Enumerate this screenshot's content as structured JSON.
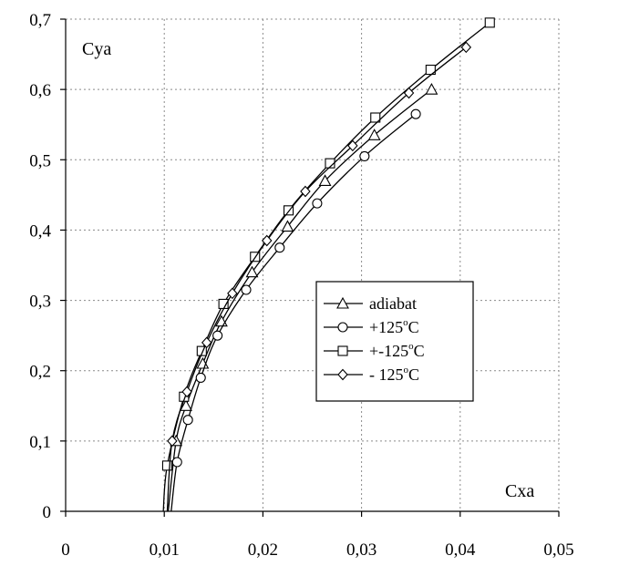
{
  "chart_data": {
    "type": "line",
    "xlabel": "Cxa",
    "ylabel": "Cya",
    "xlim": [
      0,
      0.05
    ],
    "ylim": [
      0,
      0.7
    ],
    "x_ticks": [
      "0",
      "0,01",
      "0,02",
      "0,03",
      "0,04",
      "0,05"
    ],
    "y_ticks": [
      "0",
      "0,1",
      "0,2",
      "0,3",
      "0,4",
      "0,5",
      "0,6",
      "0,7"
    ],
    "grid": "dotted",
    "legend_position": "center-right",
    "series": [
      {
        "name": "adiabat",
        "marker": "triangle",
        "points": [
          [
            0.0112,
            0.1
          ],
          [
            0.0122,
            0.15
          ],
          [
            0.0139,
            0.21
          ],
          [
            0.0158,
            0.27
          ],
          [
            0.0189,
            0.34
          ],
          [
            0.0225,
            0.405
          ],
          [
            0.0263,
            0.47
          ],
          [
            0.0313,
            0.535
          ],
          [
            0.0371,
            0.6
          ]
        ],
        "curve_start": [
          0.0104,
          0.0
        ]
      },
      {
        "name": "+125°C",
        "name_main": "+125",
        "name_sup": "o",
        "name_end": "C",
        "marker": "circle",
        "points": [
          [
            0.0113,
            0.07
          ],
          [
            0.0124,
            0.13
          ],
          [
            0.0137,
            0.19
          ],
          [
            0.0154,
            0.25
          ],
          [
            0.0183,
            0.315
          ],
          [
            0.0217,
            0.375
          ],
          [
            0.0255,
            0.438
          ],
          [
            0.0303,
            0.505
          ],
          [
            0.0355,
            0.565
          ]
        ],
        "curve_start": [
          0.0107,
          0.0
        ]
      },
      {
        "name": "+-125°C",
        "name_main": "+-125",
        "name_sup": "o",
        "name_end": "C",
        "marker": "square",
        "points": [
          [
            0.0103,
            0.065
          ],
          [
            0.012,
            0.163
          ],
          [
            0.0138,
            0.228
          ],
          [
            0.016,
            0.295
          ],
          [
            0.0192,
            0.362
          ],
          [
            0.0226,
            0.428
          ],
          [
            0.0268,
            0.495
          ],
          [
            0.0314,
            0.56
          ],
          [
            0.037,
            0.628
          ],
          [
            0.043,
            0.695
          ]
        ],
        "curve_start": [
          0.0099,
          0.0
        ]
      },
      {
        "name": "- 125°C",
        "name_main": "- 125",
        "name_sup": "o",
        "name_end": "C",
        "marker": "diamond",
        "points": [
          [
            0.0108,
            0.1
          ],
          [
            0.0123,
            0.17
          ],
          [
            0.0143,
            0.24
          ],
          [
            0.0169,
            0.31
          ],
          [
            0.0204,
            0.385
          ],
          [
            0.0243,
            0.455
          ],
          [
            0.0291,
            0.52
          ],
          [
            0.0348,
            0.595
          ],
          [
            0.0406,
            0.66
          ]
        ],
        "curve_start": [
          0.0103,
          0.0
        ]
      }
    ]
  }
}
